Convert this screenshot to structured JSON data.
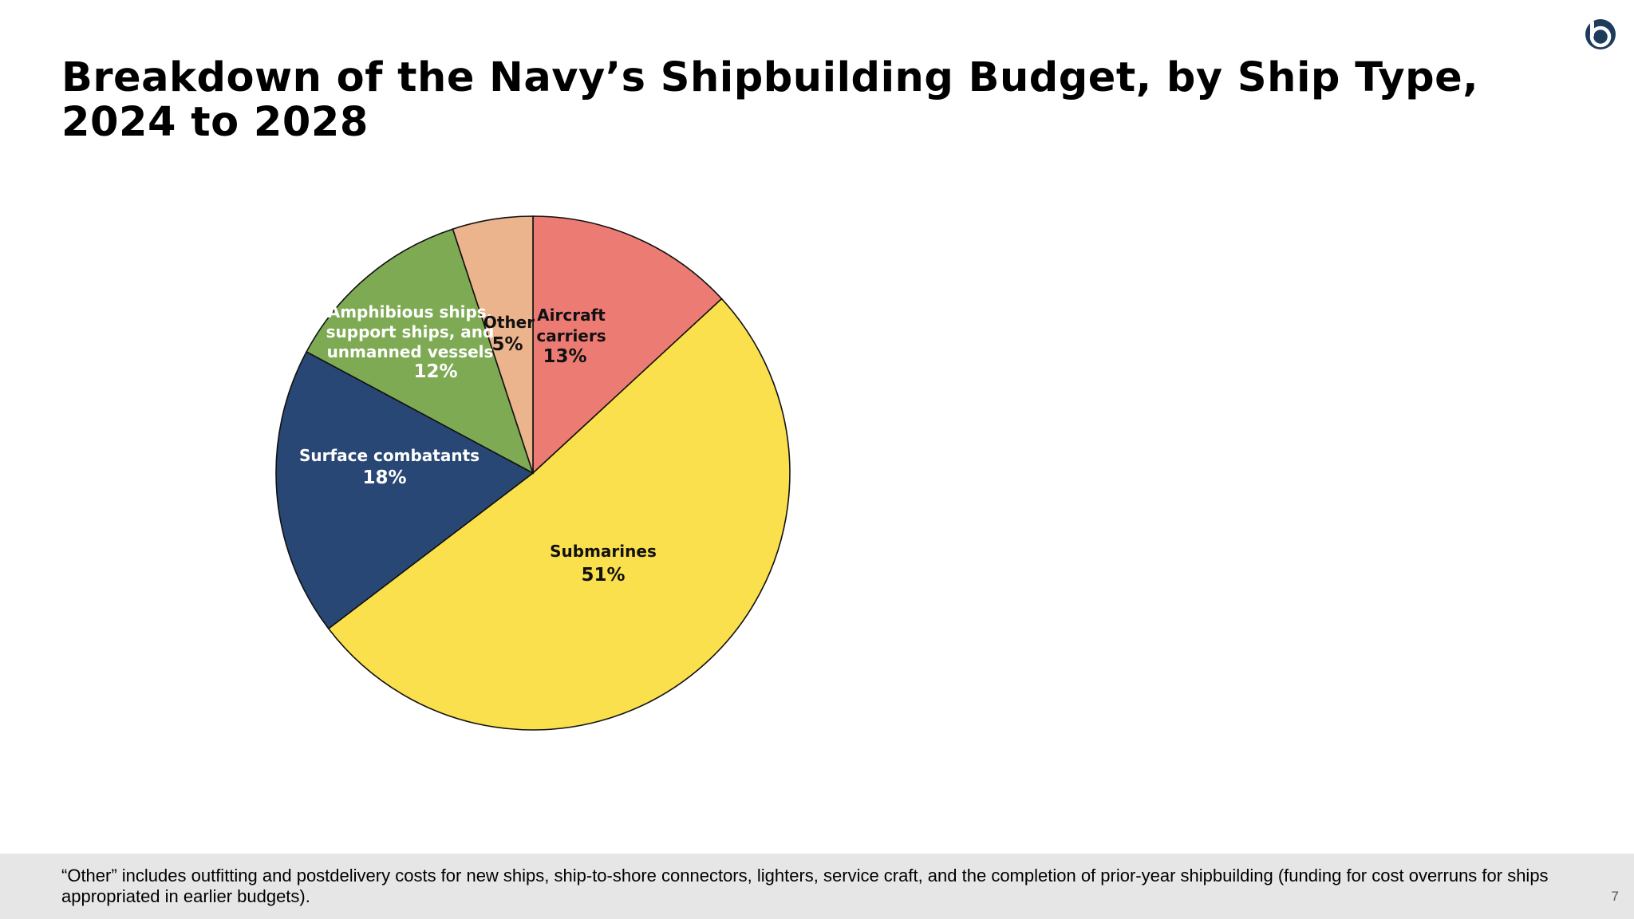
{
  "slide": {
    "title": "Breakdown of the Navy’s Shipbuilding Budget, by Ship Type,\n2024 to 2028",
    "footnote": "“Other” includes outfitting and postdelivery costs for new ships, ship-to-shore connectors, lighters, service craft, and the completion of prior-year shipbuilding (funding for cost overruns for ships appropriated in earlier budgets).",
    "page_number": "7",
    "logo_icon": "brand-logo-icon",
    "logo_color": "#1f3b5c"
  },
  "chart_data": {
    "type": "pie",
    "title": "Breakdown of the Navy’s Shipbuilding Budget, by Ship Type, 2024 to 2028",
    "start": "12 o'clock, clockwise",
    "slices": [
      {
        "key": "aircraft-carriers",
        "label_lines": [
          "Aircraft",
          "carriers"
        ],
        "value": 13,
        "value_label": "13%",
        "color": "#ec7b74",
        "text_color": "#111111"
      },
      {
        "key": "submarines",
        "label_lines": [
          "Submarines"
        ],
        "value": 51,
        "value_label": "51%",
        "color": "#fbe04d",
        "text_color": "#111111"
      },
      {
        "key": "surface-combatants",
        "label_lines": [
          "Surface combatants"
        ],
        "value": 18,
        "value_label": "18%",
        "color": "#294774",
        "text_color": "#ffffff"
      },
      {
        "key": "amphibious-support-unmanned",
        "label_lines": [
          "Amphibious ships,",
          "support ships, and",
          "unmanned vessels"
        ],
        "value": 12,
        "value_label": "12%",
        "color": "#7daa53",
        "text_color": "#ffffff"
      },
      {
        "key": "other",
        "label_lines": [
          "Other"
        ],
        "value": 5,
        "value_label": "5%",
        "color": "#ecb48c",
        "text_color": "#111111"
      }
    ]
  }
}
